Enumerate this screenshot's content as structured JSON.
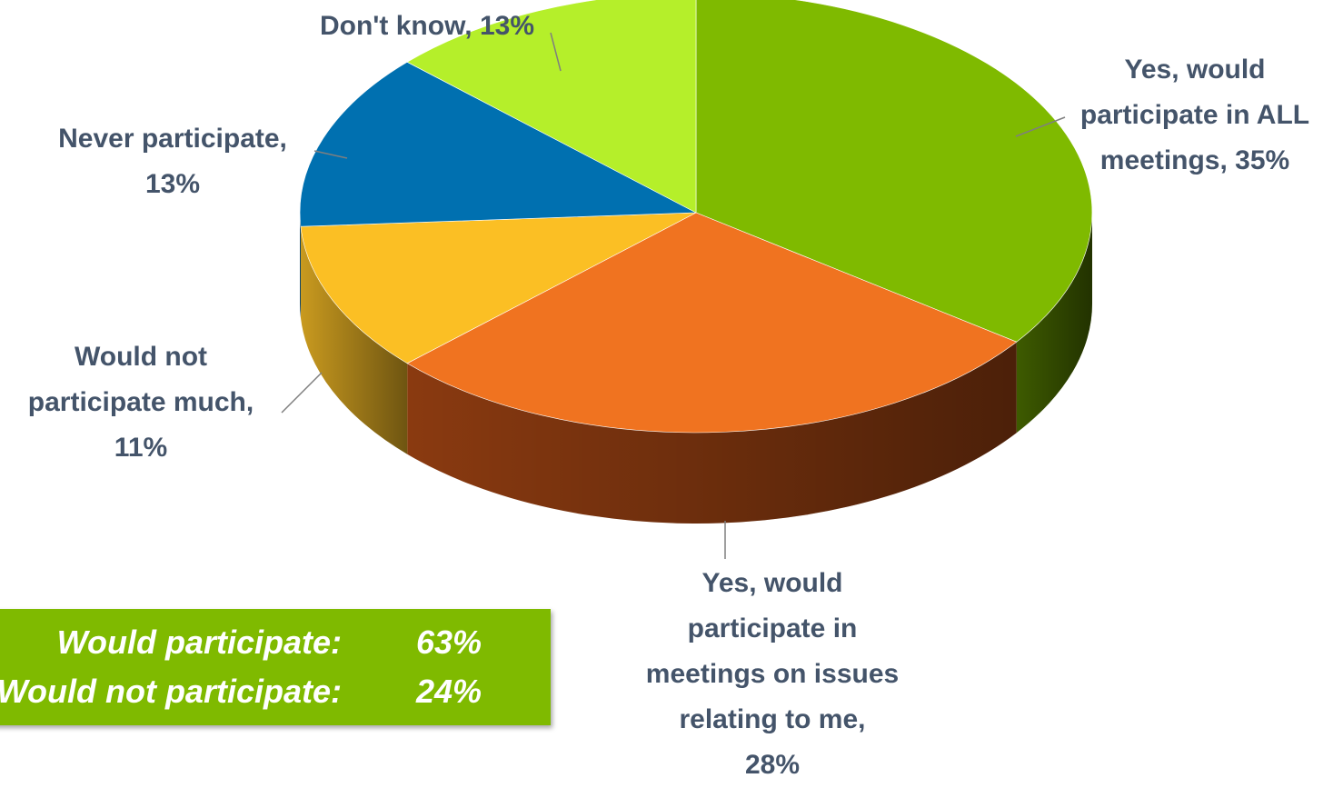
{
  "chart_data": {
    "type": "pie",
    "title": "",
    "slices": [
      {
        "label": "Yes, would participate in ALL meetings",
        "value": 35,
        "text": "35%",
        "color": "#7fba00",
        "side_color": "#3e5b00"
      },
      {
        "label": "Yes, would participate in meetings on issues relating to me",
        "value": 28,
        "text": "28%",
        "color": "#f07320",
        "side_color": "#8a3a10"
      },
      {
        "label": "Would not participate much",
        "value": 11,
        "text": "11%",
        "color": "#fbbf24",
        "side_color": "#c99a1f"
      },
      {
        "label": "Never participate",
        "value": 13,
        "text": "13%",
        "color": "#0070b0",
        "side_color": "#004a7a"
      },
      {
        "label": "Don't know",
        "value": 13,
        "text": "13%",
        "color": "#b5ef2a",
        "side_color": "#7ea81c"
      }
    ],
    "summary": [
      {
        "label": "Would participate:",
        "value": "63%"
      },
      {
        "label": "Would not participate:",
        "value": "24%"
      }
    ]
  },
  "labels": {
    "all_meetings": [
      "Yes, would",
      "participate in ALL",
      "meetings, 35%"
    ],
    "issues": [
      "Yes, would",
      "participate in",
      "meetings on issues",
      "relating to me,",
      "28%"
    ],
    "not_much": [
      "Would not",
      "participate much,",
      "11%"
    ],
    "never": [
      "Never participate,",
      "13%"
    ],
    "dont_know": [
      "Don't know, 13%"
    ]
  },
  "summary_box": {
    "row1_label": "Would participate:",
    "row1_value": "63%",
    "row2_label": "Would not participate:",
    "row2_value": "24%"
  }
}
